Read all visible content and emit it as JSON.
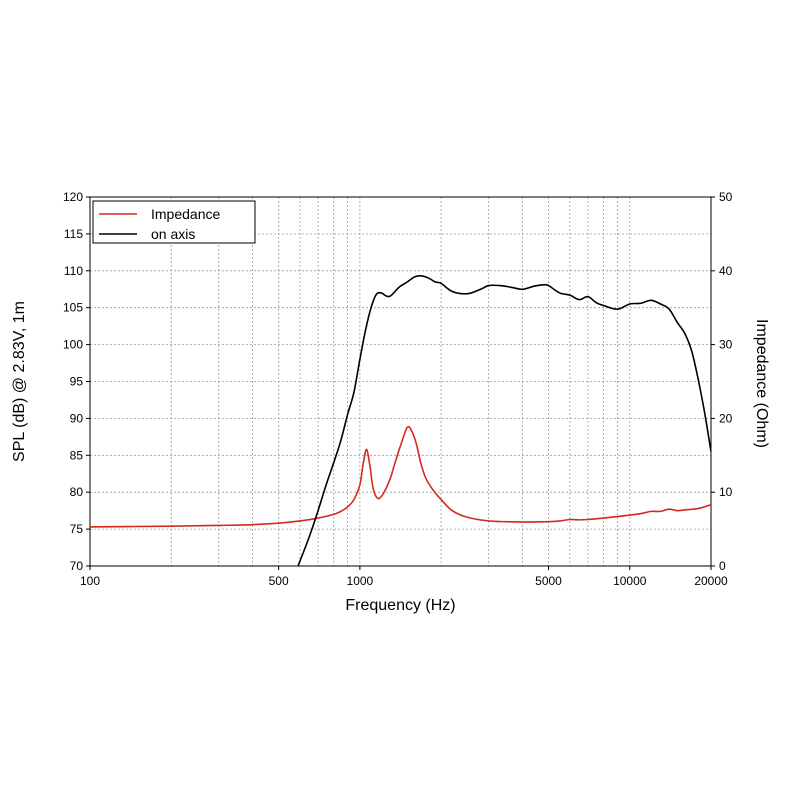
{
  "chart_data": {
    "type": "line",
    "xlabel": "Frequency (Hz)",
    "ylabel_left": "SPL (dB) @ 2.83V, 1m",
    "ylabel_right": "Impedance (Ohm)",
    "x_scale": "log",
    "xlim": [
      100,
      20000
    ],
    "ylim_left": [
      70,
      120
    ],
    "ylim_right": [
      0,
      50
    ],
    "x_ticks": [
      100,
      500,
      1000,
      5000,
      10000,
      20000
    ],
    "x_tick_labels": [
      "100",
      "500",
      "1000",
      "5000",
      "10000",
      "20000"
    ],
    "y_left_ticks": [
      70,
      75,
      80,
      85,
      90,
      95,
      100,
      105,
      110,
      115,
      120
    ],
    "y_left_tick_labels": [
      "70",
      "75",
      "80",
      "85",
      "90",
      "95",
      "100",
      "105",
      "110",
      "115",
      "120"
    ],
    "y_right_ticks": [
      0,
      10,
      20,
      30,
      40,
      50
    ],
    "y_right_tick_labels": [
      "0",
      "10",
      "20",
      "30",
      "40",
      "50"
    ],
    "grid": true,
    "legend_position": "top-left",
    "series": [
      {
        "name": "Impedance",
        "axis": "right",
        "color": "#d42a1e",
        "x": [
          100,
          200,
          300,
          400,
          500,
          600,
          700,
          800,
          850,
          900,
          950,
          1000,
          1030,
          1060,
          1090,
          1120,
          1160,
          1200,
          1250,
          1300,
          1350,
          1420,
          1500,
          1560,
          1620,
          1680,
          1750,
          1850,
          2000,
          2200,
          2500,
          3000,
          3500,
          4000,
          5000,
          5500,
          6000,
          6500,
          7000,
          8000,
          9000,
          10000,
          11000,
          12000,
          13000,
          14000,
          15000,
          16000,
          18000,
          20000
        ],
        "y": [
          5.3,
          5.4,
          5.5,
          5.6,
          5.8,
          6.1,
          6.5,
          7.0,
          7.4,
          8.0,
          9.0,
          11.0,
          14.0,
          15.8,
          13.5,
          10.5,
          9.2,
          9.4,
          10.5,
          12.0,
          14.0,
          16.5,
          18.8,
          18.2,
          16.5,
          14.0,
          12.0,
          10.5,
          9.0,
          7.5,
          6.6,
          6.1,
          6.0,
          5.95,
          6.0,
          6.1,
          6.3,
          6.25,
          6.3,
          6.5,
          6.7,
          6.9,
          7.1,
          7.4,
          7.4,
          7.7,
          7.5,
          7.6,
          7.8,
          8.3
        ]
      },
      {
        "name": "on axis",
        "axis": "left",
        "color": "#000000",
        "x": [
          590,
          650,
          700,
          750,
          800,
          850,
          900,
          950,
          1000,
          1050,
          1100,
          1150,
          1200,
          1250,
          1300,
          1400,
          1500,
          1600,
          1700,
          1800,
          1900,
          2000,
          2200,
          2500,
          2800,
          3000,
          3300,
          3600,
          4000,
          4400,
          4800,
          5000,
          5500,
          6000,
          6500,
          7000,
          7500,
          8000,
          9000,
          10000,
          11000,
          12000,
          13000,
          14000,
          15000,
          16000,
          17000,
          18000,
          19000,
          20000
        ],
        "y": [
          70.0,
          74.0,
          77.5,
          81.0,
          84.0,
          87.0,
          90.5,
          93.5,
          98.0,
          102.0,
          105.0,
          106.8,
          107.0,
          106.6,
          106.6,
          107.8,
          108.5,
          109.2,
          109.3,
          109.0,
          108.5,
          108.3,
          107.2,
          106.9,
          107.5,
          108.0,
          108.0,
          107.8,
          107.5,
          107.9,
          108.1,
          108.0,
          107.0,
          106.7,
          106.1,
          106.5,
          105.7,
          105.3,
          104.8,
          105.5,
          105.6,
          106.0,
          105.5,
          104.8,
          103.0,
          101.5,
          99.0,
          95.0,
          90.5,
          85.5
        ]
      }
    ]
  }
}
